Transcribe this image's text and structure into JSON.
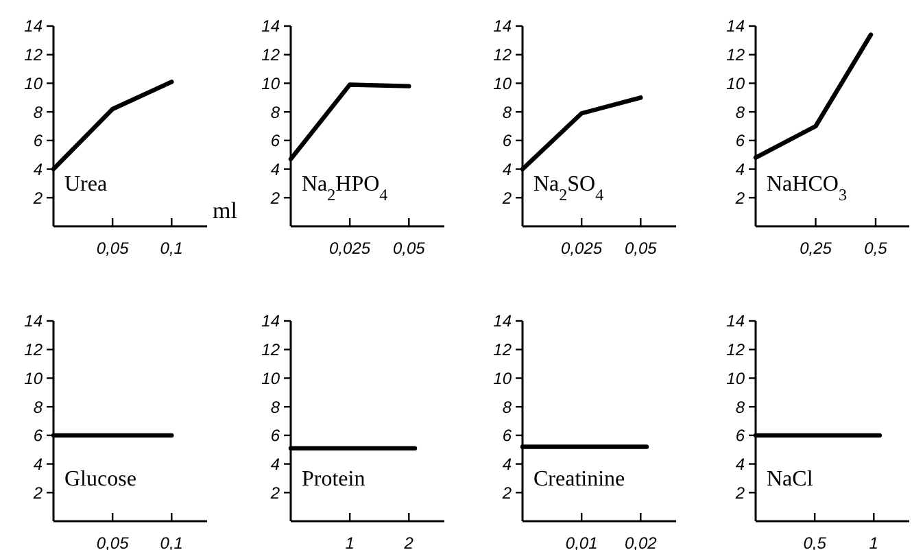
{
  "chart_data": [
    {
      "type": "line",
      "annotations": [
        "Urea"
      ],
      "xlabel": "ml",
      "x": [
        0,
        0.05,
        0.1
      ],
      "values": [
        4,
        8.2,
        10.1
      ],
      "color": "#000000",
      "xlim": [
        0,
        0.13
      ],
      "xticks": [
        {
          "value": 0.05,
          "label": "0,05"
        },
        {
          "value": 0.1,
          "label": "0,1"
        }
      ],
      "ylim": [
        0,
        14
      ],
      "yticks": [
        2,
        4,
        6,
        8,
        10,
        12,
        14
      ],
      "marker": "none",
      "line_style": "solid",
      "grid": false
    },
    {
      "type": "line",
      "annotations": [
        "Na$_{2}$HPO$_{4}$"
      ],
      "x": [
        0,
        0.025,
        0.05
      ],
      "values": [
        4.7,
        9.9,
        9.8
      ],
      "color": "#000000",
      "xlim": [
        0,
        0.065
      ],
      "xticks": [
        {
          "value": 0.025,
          "label": "0,025"
        },
        {
          "value": 0.05,
          "label": "0,05"
        }
      ],
      "ylim": [
        0,
        14
      ],
      "yticks": [
        2,
        4,
        6,
        8,
        10,
        12,
        14
      ],
      "marker": "none",
      "line_style": "solid",
      "grid": false
    },
    {
      "type": "line",
      "annotations": [
        "Na$_{2}$SO$_{4}$"
      ],
      "x": [
        0,
        0.025,
        0.05
      ],
      "values": [
        4,
        7.9,
        9
      ],
      "color": "#000000",
      "xlim": [
        0,
        0.065
      ],
      "xticks": [
        {
          "value": 0.025,
          "label": "0,025"
        },
        {
          "value": 0.05,
          "label": "0,05"
        }
      ],
      "ylim": [
        0,
        14
      ],
      "yticks": [
        2,
        4,
        6,
        8,
        10,
        12,
        14
      ],
      "marker": "none",
      "line_style": "solid",
      "grid": false
    },
    {
      "type": "line",
      "annotations": [
        "NaHCO$_{3}$"
      ],
      "x": [
        0,
        0.25,
        0.48
      ],
      "values": [
        4.8,
        7,
        13.4
      ],
      "color": "#000000",
      "xlim": [
        0,
        0.64
      ],
      "xticks": [
        {
          "value": 0.25,
          "label": "0,25"
        },
        {
          "value": 0.5,
          "label": "0,5"
        }
      ],
      "ylim": [
        0,
        14
      ],
      "yticks": [
        2,
        4,
        6,
        8,
        10,
        12,
        14
      ],
      "marker": "none",
      "line_style": "solid",
      "grid": false
    },
    {
      "type": "line",
      "annotations": [
        "Glucose"
      ],
      "x": [
        0,
        0.1
      ],
      "values": [
        6,
        6
      ],
      "color": "#000000",
      "xlim": [
        0,
        0.13
      ],
      "xticks": [
        {
          "value": 0.05,
          "label": "0,05"
        },
        {
          "value": 0.1,
          "label": "0,1"
        }
      ],
      "ylim": [
        0,
        14
      ],
      "yticks": [
        2,
        4,
        6,
        8,
        10,
        12,
        14
      ],
      "marker": "none",
      "line_style": "solid",
      "grid": false
    },
    {
      "type": "line",
      "annotations": [
        "Protein"
      ],
      "x": [
        0,
        2.1
      ],
      "values": [
        5.1,
        5.1
      ],
      "color": "#000000",
      "xlim": [
        0,
        2.6
      ],
      "xticks": [
        {
          "value": 1,
          "label": "1"
        },
        {
          "value": 2,
          "label": "2"
        }
      ],
      "ylim": [
        0,
        14
      ],
      "yticks": [
        2,
        4,
        6,
        8,
        10,
        12,
        14
      ],
      "marker": "none",
      "line_style": "solid",
      "grid": false
    },
    {
      "type": "line",
      "annotations": [
        "Creatinine"
      ],
      "x": [
        0,
        0.021
      ],
      "values": [
        5.2,
        5.2
      ],
      "color": "#000000",
      "xlim": [
        0,
        0.026
      ],
      "xticks": [
        {
          "value": 0.01,
          "label": "0,01"
        },
        {
          "value": 0.02,
          "label": "0,02"
        }
      ],
      "ylim": [
        0,
        14
      ],
      "yticks": [
        2,
        4,
        6,
        8,
        10,
        12,
        14
      ],
      "marker": "none",
      "line_style": "solid",
      "grid": false
    },
    {
      "type": "line",
      "annotations": [
        "NaCl"
      ],
      "x": [
        0,
        1.05
      ],
      "values": [
        6,
        6
      ],
      "color": "#000000",
      "xlim": [
        0,
        1.3
      ],
      "xticks": [
        {
          "value": 0.5,
          "label": "0,5"
        },
        {
          "value": 1,
          "label": "1"
        }
      ],
      "ylim": [
        0,
        14
      ],
      "yticks": [
        2,
        4,
        6,
        8,
        10,
        12,
        14
      ],
      "marker": "none",
      "line_style": "solid",
      "grid": false
    }
  ]
}
